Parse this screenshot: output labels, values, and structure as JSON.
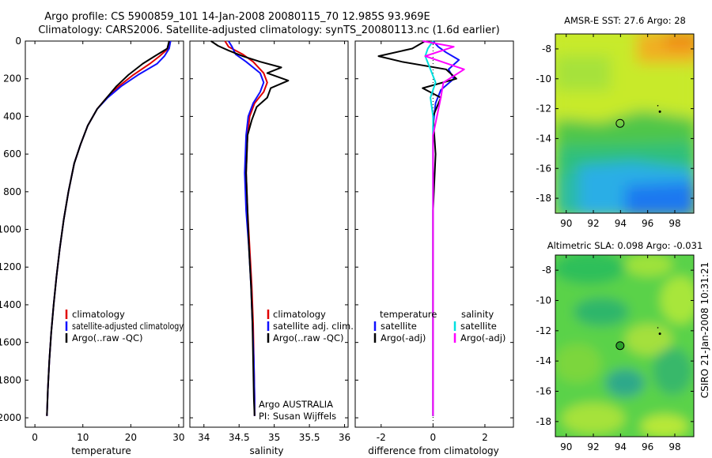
{
  "title": {
    "line1": "Argo profile: CS 5900859_101 14-Jan-2008 20080115_70 12.985S 93.969E",
    "line2": "Climatology: CARS2006. Satellite-adjusted climatology: synTS_20080113.nc (1.6d earlier)"
  },
  "colors": {
    "climatology": "#e00000",
    "satellite": "#1010ff",
    "argo": "#000000",
    "sal_satellite": "#00e0e0",
    "sal_argo": "#ff00ff"
  },
  "chart_data": [
    {
      "type": "line",
      "name": "temperature-panel",
      "xlabel": "temperature",
      "ylabel": "",
      "xlim": [
        -2,
        31
      ],
      "ylim": [
        2050,
        0
      ],
      "xticks": [
        0,
        10,
        20,
        30
      ],
      "xtick_labels": [
        "0",
        "10",
        "20",
        "30"
      ],
      "yticks": [
        0,
        200,
        400,
        600,
        800,
        1000,
        1200,
        1400,
        1600,
        1800,
        2000
      ],
      "ytick_labels": [
        "0",
        "200",
        "400",
        "600",
        "800",
        "1000",
        "1200",
        "1400",
        "1600",
        "1800",
        "2000"
      ],
      "legend": [
        "climatology",
        "satellite-adjusted climatology",
        "Argo(..raw -QC)"
      ],
      "series": [
        {
          "name": "climatology",
          "color_key": "climatology",
          "x": [
            28.2,
            27.8,
            26.0,
            24.0,
            20.5,
            17.5,
            15.0,
            13.0,
            11.0,
            9.5,
            8.2,
            7.0,
            6.0,
            5.2,
            4.5,
            3.9,
            3.4,
            3.0,
            2.7,
            2.5
          ],
          "y": [
            0,
            40,
            80,
            120,
            180,
            240,
            300,
            360,
            450,
            550,
            650,
            800,
            950,
            1100,
            1250,
            1400,
            1550,
            1700,
            1850,
            1990
          ]
        },
        {
          "name": "satellite-adjusted climatology",
          "color_key": "satellite",
          "x": [
            28.3,
            28.0,
            27.0,
            25.5,
            21.5,
            18.0,
            15.2,
            13.0,
            11.0,
            9.5,
            8.2,
            7.0,
            6.0,
            5.2,
            4.5,
            3.9,
            3.4,
            3.0,
            2.7,
            2.5
          ],
          "y": [
            0,
            40,
            80,
            120,
            180,
            240,
            300,
            360,
            450,
            550,
            650,
            800,
            950,
            1100,
            1250,
            1400,
            1550,
            1700,
            1850,
            1990
          ]
        },
        {
          "name": "Argo(..raw -QC)",
          "color_key": "argo",
          "x": [
            28.0,
            27.6,
            25.0,
            22.5,
            19.5,
            17.0,
            15.0,
            13.0,
            11.0,
            9.5,
            8.2,
            7.0,
            6.0,
            5.2,
            4.5,
            3.9,
            3.4,
            3.0,
            2.7,
            2.5
          ],
          "y": [
            0,
            40,
            80,
            120,
            180,
            240,
            300,
            360,
            450,
            550,
            650,
            800,
            950,
            1100,
            1250,
            1400,
            1550,
            1700,
            1850,
            1990
          ]
        }
      ]
    },
    {
      "type": "line",
      "name": "salinity-panel",
      "xlabel": "salinity",
      "xlim": [
        33.8,
        36.05
      ],
      "ylim": [
        2050,
        0
      ],
      "xticks": [
        34,
        34.5,
        35,
        35.5,
        36
      ],
      "xtick_labels": [
        "34",
        "34.5",
        "35",
        "35.5",
        "36"
      ],
      "legend": [
        "climatology",
        "satellite adj. clim.",
        "Argo(..raw -QC)"
      ],
      "annotation": [
        "Argo AUSTRALIA",
        "PI: Susan Wijffels"
      ],
      "series": [
        {
          "name": "climatology",
          "color_key": "climatology",
          "x": [
            34.3,
            34.35,
            34.55,
            34.7,
            34.85,
            34.9,
            34.85,
            34.72,
            34.65,
            34.62,
            34.6,
            34.62,
            34.65,
            34.68,
            34.7,
            34.71,
            34.72,
            34.72
          ],
          "y": [
            0,
            30,
            70,
            110,
            170,
            220,
            270,
            330,
            400,
            500,
            700,
            900,
            1100,
            1300,
            1500,
            1700,
            1900,
            1990
          ]
        },
        {
          "name": "satellite adj. clim.",
          "color_key": "satellite",
          "x": [
            34.35,
            34.4,
            34.45,
            34.6,
            34.8,
            34.85,
            34.8,
            34.7,
            34.63,
            34.6,
            34.58,
            34.6,
            34.64,
            34.67,
            34.69,
            34.71,
            34.72,
            34.72
          ],
          "y": [
            0,
            30,
            70,
            110,
            170,
            220,
            270,
            330,
            400,
            500,
            700,
            900,
            1100,
            1300,
            1500,
            1700,
            1900,
            1990
          ]
        },
        {
          "name": "Argo(..raw -QC)",
          "color_key": "argo",
          "x": [
            34.1,
            34.2,
            34.35,
            34.55,
            34.8,
            35.1,
            34.9,
            35.2,
            34.95,
            34.9,
            34.75,
            34.68,
            34.62,
            34.6,
            34.62,
            34.64,
            34.67,
            34.69,
            34.7,
            34.71,
            34.72
          ],
          "y": [
            0,
            25,
            50,
            80,
            110,
            140,
            170,
            210,
            250,
            300,
            350,
            420,
            500,
            700,
            900,
            1100,
            1300,
            1500,
            1700,
            1900,
            1990
          ]
        }
      ]
    },
    {
      "type": "line",
      "name": "difference-panel",
      "xlabel": "difference from climatology",
      "xlim": [
        -3,
        3.1
      ],
      "ylim": [
        2050,
        0
      ],
      "xticks": [
        -2,
        0,
        2
      ],
      "xtick_labels": [
        "-2",
        "0",
        "2"
      ],
      "legend_temperature_header": "temperature",
      "legend_salinity_header": "salinity",
      "legend": [
        "satellite",
        "Argo(-adj)",
        "satellite",
        "Argo(-adj)"
      ],
      "series": [
        {
          "name": "temperature satellite",
          "color_key": "satellite",
          "x": [
            0.0,
            0.2,
            0.5,
            1.0,
            0.6,
            0.8,
            0.3,
            0.1,
            0.0,
            0.0,
            0.0,
            0.0,
            0.0,
            0.0
          ],
          "y": [
            0,
            30,
            60,
            100,
            150,
            200,
            260,
            330,
            450,
            600,
            900,
            1300,
            1700,
            1990
          ]
        },
        {
          "name": "temperature Argo(-adj)",
          "color_key": "argo",
          "x": [
            -0.3,
            -0.8,
            -2.1,
            -1.2,
            0.5,
            0.9,
            -0.4,
            0.3,
            0.0,
            0.1,
            0.0,
            0.0,
            0.0,
            0.0
          ],
          "y": [
            0,
            40,
            80,
            110,
            150,
            200,
            250,
            300,
            400,
            600,
            900,
            1300,
            1700,
            1990
          ]
        },
        {
          "name": "salinity satellite",
          "color_key": "sal_satellite",
          "x": [
            0.0,
            -0.2,
            -0.3,
            -0.1,
            0.1,
            -0.1,
            0.0,
            0.0,
            0.0,
            0.0,
            0.0,
            0.0,
            0.0
          ],
          "y": [
            0,
            40,
            80,
            150,
            220,
            300,
            400,
            600,
            900,
            1200,
            1500,
            1800,
            1990
          ]
        },
        {
          "name": "salinity Argo(-adj)",
          "color_key": "sal_argo",
          "x": [
            -0.4,
            0.8,
            -0.3,
            1.2,
            0.4,
            0.3,
            0.0,
            0.0,
            0.0,
            0.0,
            0.0
          ],
          "y": [
            0,
            30,
            80,
            150,
            220,
            300,
            500,
            800,
            1200,
            1600,
            1990
          ]
        }
      ]
    },
    {
      "type": "heatmap",
      "name": "sst-map",
      "title": "AMSR-E SST: 27.6 Argo: 28",
      "xlim": [
        89.2,
        99.4
      ],
      "ylim": [
        -19,
        -7
      ],
      "xticks": [
        90,
        92,
        94,
        96,
        98
      ],
      "xtick_labels": [
        "90",
        "92",
        "94",
        "96",
        "98"
      ],
      "yticks": [
        -8,
        -10,
        -12,
        -14,
        -16,
        -18
      ],
      "ytick_labels": [
        "-8",
        "-10",
        "-12",
        "-14",
        "-16",
        "-18"
      ],
      "marker_lon": 93.969,
      "marker_lat": -12.985,
      "marker_fill": "none"
    },
    {
      "type": "heatmap",
      "name": "sla-map",
      "title": "Altimetric SLA: 0.098 Argo: -0.031",
      "xlim": [
        89.2,
        99.4
      ],
      "ylim": [
        -19,
        -7
      ],
      "xticks": [
        90,
        92,
        94,
        96,
        98
      ],
      "xtick_labels": [
        "90",
        "92",
        "94",
        "96",
        "98"
      ],
      "yticks": [
        -8,
        -10,
        -12,
        -14,
        -16,
        -18
      ],
      "ytick_labels": [
        "-8",
        "-10",
        "-12",
        "-14",
        "-16",
        "-18"
      ],
      "marker_lon": 93.969,
      "marker_lat": -12.985,
      "marker_fill": "#2aa02a"
    }
  ],
  "footer": "CSIRO 21-Jan-2008 10:31:21"
}
